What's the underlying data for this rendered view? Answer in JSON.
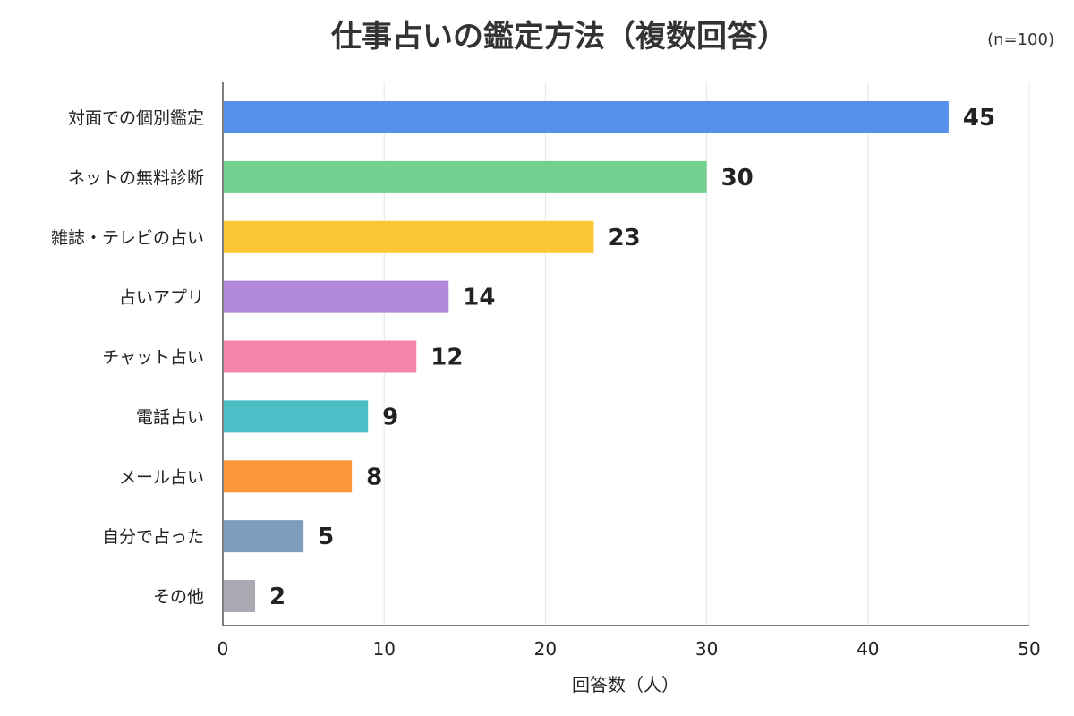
{
  "chart_data": {
    "type": "bar",
    "orientation": "horizontal",
    "title": "仕事占いの鑑定方法（複数回答）",
    "note": "(n=100)",
    "xlabel": "回答数（人）",
    "ylabel": "",
    "xlim": [
      0,
      50
    ],
    "xticks": [
      0,
      10,
      20,
      30,
      40,
      50
    ],
    "grid": true,
    "categories": [
      "対面での個別鑑定",
      "ネットの無料診断",
      "雑誌・テレビの占い",
      "占いアプリ",
      "チャット占い",
      "電話占い",
      "メール占い",
      "自分で占った",
      "その他"
    ],
    "values": [
      45,
      30,
      23,
      14,
      12,
      9,
      8,
      5,
      2
    ],
    "colors": [
      "#5590ec",
      "#74d08f",
      "#fbc734",
      "#b389dc",
      "#f385aa",
      "#4bbec6",
      "#fb973d",
      "#7c9dbe",
      "#a9a9b1"
    ]
  }
}
